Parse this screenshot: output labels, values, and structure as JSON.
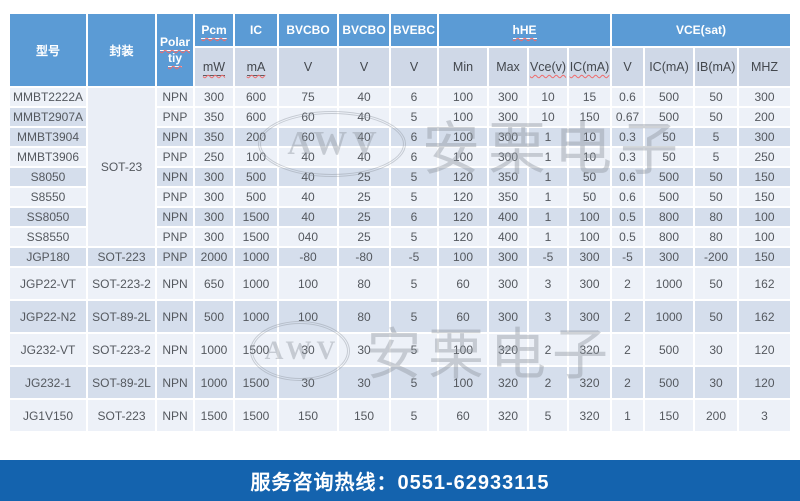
{
  "colors": {
    "header_blue": "#5b9bd5",
    "subheader_gray_blue": "#cfd8e7",
    "row_light": "#edf1f8",
    "row_dark": "#d5deec",
    "footer_blue": "#1463ae",
    "watermark_gray": "#8f969f"
  },
  "watermark": {
    "badge": "AWV",
    "text": "安栗电子"
  },
  "footer": {
    "hotline": "服务咨询热线：0551-62933115"
  },
  "table": {
    "header": {
      "model": "型号",
      "package": "封装",
      "polarity_line1": "Polar",
      "polarity_line2": "tiy",
      "top": [
        "Pcm",
        "IC",
        "BVCBO",
        "BVCBO",
        "BVEBC",
        "hHE",
        "VCE(sat)"
      ],
      "sub": [
        "mW",
        "mA",
        "V",
        "V",
        "V",
        "Min",
        "Max",
        "Vce(v)",
        "IC(mA)",
        "V",
        "IC(mA)",
        "IB(mA)",
        "MHZ"
      ]
    },
    "rows": [
      {
        "model": "MMBT2222A",
        "package": "SOT-23",
        "package_rowspan": 8,
        "polarity": "NPN",
        "values": [
          "300",
          "600",
          "75",
          "40",
          "6",
          "100",
          "300",
          "10",
          "15",
          "0.6",
          "500",
          "50",
          "300"
        ]
      },
      {
        "model": "MMBT2907A",
        "package": null,
        "polarity": "PNP",
        "values": [
          "350",
          "600",
          "60",
          "40",
          "5",
          "100",
          "300",
          "10",
          "150",
          "0.67",
          "500",
          "50",
          "200"
        ]
      },
      {
        "model": "MMBT3904",
        "package": null,
        "polarity": "NPN",
        "values": [
          "350",
          "200",
          "60",
          "40",
          "6",
          "100",
          "300",
          "1",
          "10",
          "0.3",
          "50",
          "5",
          "300"
        ]
      },
      {
        "model": "MMBT3906",
        "package": null,
        "polarity": "PNP",
        "values": [
          "250",
          "100",
          "40",
          "40",
          "6",
          "100",
          "300",
          "1",
          "10",
          "0.3",
          "50",
          "5",
          "250"
        ]
      },
      {
        "model": "S8050",
        "package": null,
        "polarity": "NPN",
        "values": [
          "300",
          "500",
          "40",
          "25",
          "5",
          "120",
          "350",
          "1",
          "50",
          "0.6",
          "500",
          "50",
          "150"
        ]
      },
      {
        "model": "S8550",
        "package": null,
        "polarity": "PNP",
        "values": [
          "300",
          "500",
          "40",
          "25",
          "5",
          "120",
          "350",
          "1",
          "50",
          "0.6",
          "500",
          "50",
          "150"
        ]
      },
      {
        "model": "SS8050",
        "package": null,
        "polarity": "NPN",
        "values": [
          "300",
          "1500",
          "40",
          "25",
          "6",
          "120",
          "400",
          "1",
          "100",
          "0.5",
          "800",
          "80",
          "100"
        ]
      },
      {
        "model": "SS8550",
        "package": null,
        "polarity": "PNP",
        "values": [
          "300",
          "1500",
          "040",
          "25",
          "5",
          "120",
          "400",
          "1",
          "100",
          "0.5",
          "800",
          "80",
          "100"
        ]
      },
      {
        "model": "JGP180",
        "package": "SOT-223",
        "polarity": "PNP",
        "values": [
          "2000",
          "1000",
          "-80",
          "-80",
          "-5",
          "100",
          "300",
          "-5",
          "300",
          "-5",
          "300",
          "-200",
          "150"
        ]
      },
      {
        "model": "JGP22-VT",
        "package": "SOT-223-2",
        "polarity": "NPN",
        "values": [
          "650",
          "1000",
          "100",
          "80",
          "5",
          "60",
          "300",
          "3",
          "300",
          "2",
          "1000",
          "50",
          "162"
        ]
      },
      {
        "model": "JGP22-N2",
        "package": "SOT-89-2L",
        "polarity": "NPN",
        "values": [
          "500",
          "1000",
          "100",
          "80",
          "5",
          "60",
          "300",
          "3",
          "300",
          "2",
          "1000",
          "50",
          "162"
        ]
      },
      {
        "model": "JG232-VT",
        "package": "SOT-223-2",
        "polarity": "NPN",
        "values": [
          "1000",
          "1500",
          "30",
          "30",
          "5",
          "100",
          "320",
          "2",
          "320",
          "2",
          "500",
          "30",
          "120"
        ]
      },
      {
        "model": "JG232-1",
        "package": "SOT-89-2L",
        "polarity": "NPN",
        "values": [
          "1000",
          "1500",
          "30",
          "30",
          "5",
          "100",
          "320",
          "2",
          "320",
          "2",
          "500",
          "30",
          "120"
        ]
      },
      {
        "model": "JG1V150",
        "package": "SOT-223",
        "polarity": "NPN",
        "values": [
          "1500",
          "1500",
          "150",
          "150",
          "5",
          "60",
          "320",
          "5",
          "320",
          "1",
          "150",
          "200",
          "3"
        ]
      }
    ]
  }
}
